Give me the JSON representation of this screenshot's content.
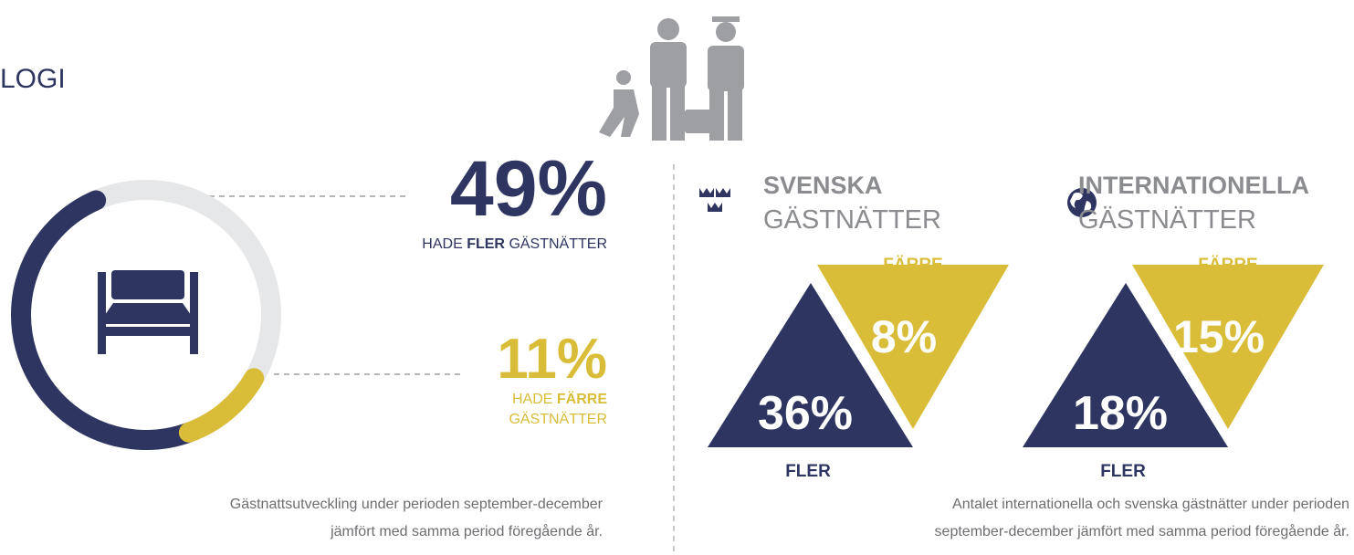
{
  "heading": "LOGI",
  "left": {
    "donut": {
      "values": [
        49,
        11
      ],
      "colors": [
        "#2e3560",
        "#d9bd38"
      ],
      "track_color": "#e6e7e8"
    },
    "more": {
      "value_label": "49%",
      "pre": "HADE",
      "bold": "FLER",
      "post": "GÄSTNÄTTER"
    },
    "fewer": {
      "value_label": "11%",
      "pre": "HADE",
      "bold": "FÄRRE",
      "post": "GÄSTNÄTTER"
    },
    "caption": [
      "Gästnattsutveckling under perioden september-december",
      "jämfört med samma period föregående år."
    ]
  },
  "panels": [
    {
      "title_bold": "SVENSKA",
      "title": "GÄSTNÄTTER",
      "fewer_label": "FÄRRE",
      "fewer_value": "8%",
      "more_value": "36%",
      "more_label": "FLER"
    },
    {
      "title_bold": "INTERNATIONELLA",
      "title": "GÄSTNÄTTER",
      "fewer_label": "FÄRRE",
      "fewer_value": "15%",
      "more_value": "18%",
      "more_label": "FLER"
    }
  ],
  "right_caption": [
    "Antalet internationella och svenska gästnätter under perioden",
    "september-december jämfört med samma period föregående år."
  ]
}
